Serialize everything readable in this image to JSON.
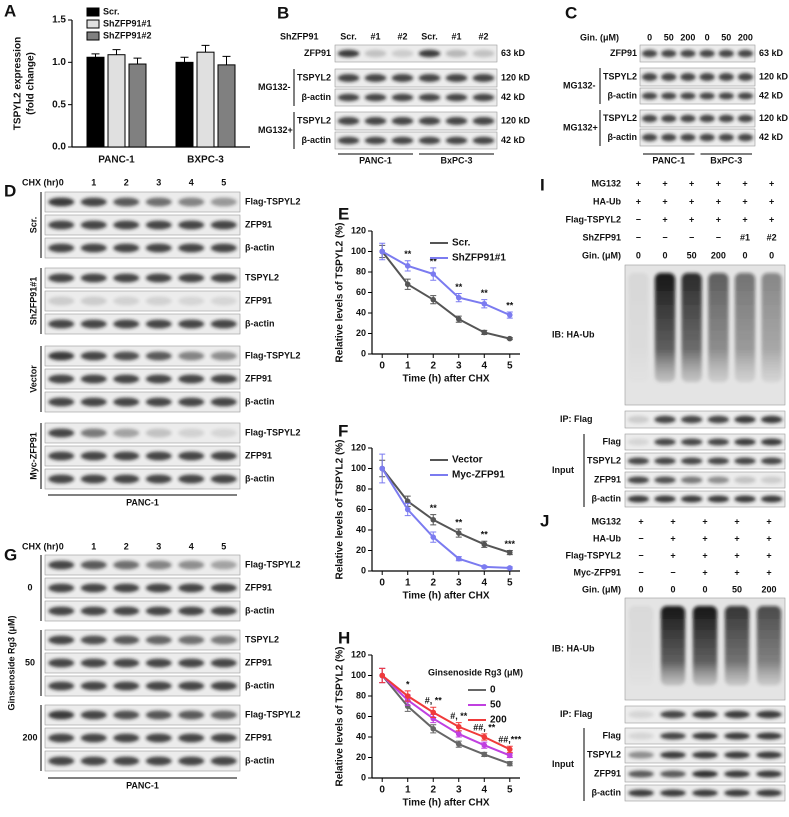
{
  "chart_data": [
    {
      "type": "bar",
      "panel": "A",
      "y_label": [
        "TSPYL2 expression",
        "(fold change)"
      ],
      "categories": [
        "PANC-1",
        "BXPC-3"
      ],
      "series": [
        {
          "name": "Scr.",
          "color": "#000000",
          "values": [
            1.06,
            1.0
          ],
          "errors": [
            0.04,
            0.06
          ]
        },
        {
          "name": "ShZFP91#1",
          "color": "#e0e0e0",
          "values": [
            1.09,
            1.12
          ],
          "errors": [
            0.06,
            0.08
          ]
        },
        {
          "name": "ShZFP91#2",
          "color": "#808080",
          "values": [
            0.98,
            0.97
          ],
          "errors": [
            0.07,
            0.1
          ]
        }
      ],
      "ylim": [
        0,
        1.5
      ],
      "yticks": [
        {
          "value": 0,
          "label": "0.0"
        },
        0.5,
        {
          "value": 1,
          "label": "1.0"
        },
        1.5
      ],
      "legend": "upper left"
    },
    {
      "type": "line",
      "panel": "E",
      "x_label": "Time (h) after CHX",
      "y_label": "Relative levels of TSPYL2 (%)",
      "x": [
        0,
        1,
        2,
        3,
        4,
        5
      ],
      "series": [
        {
          "name": "Scr.",
          "color": "#555555",
          "values": [
            100,
            68,
            53,
            34,
            21,
            15
          ],
          "errors": [
            6,
            5,
            4,
            3,
            2,
            1
          ]
        },
        {
          "name": "ShZFP91#1",
          "color": "#7b7bf0",
          "values": [
            100,
            86,
            78,
            55,
            49,
            38
          ],
          "errors": [
            8,
            5,
            6,
            4,
            4,
            3
          ]
        }
      ],
      "annotations": [
        null,
        "**",
        "**",
        "**",
        "**",
        "**"
      ],
      "xlim": [
        -0.4,
        5.4
      ],
      "xticks": [
        0,
        1,
        2,
        3,
        4,
        5
      ],
      "ylim": [
        0,
        120
      ],
      "yticks": [
        0,
        20,
        40,
        60,
        80,
        100,
        120
      ],
      "legend": "upper right"
    },
    {
      "type": "line",
      "panel": "F",
      "x_label": "Time (h) after CHX",
      "y_label": "Relative levels of TSPYL2 (%)",
      "x": [
        0,
        1,
        2,
        3,
        4,
        5
      ],
      "series": [
        {
          "name": "Vector",
          "color": "#555555",
          "values": [
            100,
            68,
            50,
            37,
            26,
            18
          ],
          "errors": [
            8,
            5,
            5,
            4,
            3,
            2
          ]
        },
        {
          "name": "Myc-ZFP91",
          "color": "#7b7bf0",
          "values": [
            100,
            60,
            33,
            12,
            4,
            3
          ],
          "errors": [
            14,
            6,
            5,
            2,
            1,
            1
          ]
        }
      ],
      "annotations": [
        null,
        null,
        "**",
        "**",
        "**",
        "***"
      ],
      "xlim": [
        -0.4,
        5.4
      ],
      "xticks": [
        0,
        1,
        2,
        3,
        4,
        5
      ],
      "ylim": [
        0,
        120
      ],
      "yticks": [
        0,
        20,
        40,
        60,
        80,
        100,
        120
      ],
      "legend": "upper right"
    },
    {
      "type": "line",
      "panel": "H",
      "x_label": "Time (h) after CHX",
      "y_label": "Relative levels of TSPYL2 (%)",
      "legend_title": "Ginsenoside Rg3 (μM)",
      "x": [
        0,
        1,
        2,
        3,
        4,
        5
      ],
      "series": [
        {
          "name": "0",
          "color": "#666666",
          "values": [
            100,
            70,
            48,
            33,
            23,
            14
          ],
          "errors": [
            7,
            5,
            4,
            3,
            2,
            2
          ]
        },
        {
          "name": "50",
          "color": "#c040e0",
          "values": [
            100,
            76,
            58,
            43,
            32,
            22
          ],
          "errors": [
            7,
            5,
            4,
            3,
            3,
            2
          ]
        },
        {
          "name": "200",
          "color": "#f03a3a",
          "values": [
            100,
            80,
            64,
            50,
            40,
            28
          ],
          "errors": [
            7,
            5,
            5,
            4,
            3,
            3
          ]
        }
      ],
      "annotations": [
        null,
        "*",
        "#, **",
        "#, **",
        "##, **",
        "##,***"
      ],
      "xlim": [
        -0.4,
        5.4
      ],
      "xticks": [
        0,
        1,
        2,
        3,
        4,
        5
      ],
      "ylim": [
        0,
        120
      ],
      "yticks": [
        0,
        20,
        40,
        60,
        80,
        100,
        120
      ],
      "legend": "upper right"
    }
  ],
  "blots": [
    {
      "panel": "B",
      "lane_header": "ShZFP91",
      "lanes": [
        "Scr.",
        "#1",
        "#2",
        "Scr.",
        "#1",
        "#2"
      ],
      "groups": [
        {
          "rows": [
            {
              "label": "ZFP91",
              "size": "63 kD"
            }
          ]
        },
        {
          "name": "MG132-",
          "rows": [
            {
              "label": "TSPYL2",
              "size": "120 kD"
            },
            {
              "label": "β-actin",
              "size": "42 kD"
            }
          ]
        },
        {
          "name": "MG132+",
          "rows": [
            {
              "label": "TSPYL2",
              "size": "120 kD"
            },
            {
              "label": "β-actin",
              "size": "42 kD"
            }
          ]
        }
      ],
      "cell_lines": [
        "PANC-1",
        "BxPC-3"
      ]
    },
    {
      "panel": "C",
      "lane_header": "Gin. (μM)",
      "lanes": [
        "0",
        "50",
        "200",
        "0",
        "50",
        "200"
      ],
      "groups": [
        {
          "rows": [
            {
              "label": "ZFP91",
              "size": "63 kD"
            }
          ]
        },
        {
          "name": "MG132-",
          "rows": [
            {
              "label": "TSPYL2",
              "size": "120 kD"
            },
            {
              "label": "β-actin",
              "size": "42 kD"
            }
          ]
        },
        {
          "name": "MG132+",
          "rows": [
            {
              "label": "TSPYL2",
              "size": "120 kD"
            },
            {
              "label": "β-actin",
              "size": "42 kD"
            }
          ]
        }
      ],
      "cell_lines": [
        "PANC-1",
        "BxPC-3"
      ]
    },
    {
      "panel": "D",
      "lane_header": "CHX (hr)",
      "lanes": [
        "0",
        "1",
        "2",
        "3",
        "4",
        "5"
      ],
      "groups": [
        {
          "name": "Scr.",
          "rows": [
            {
              "label": "Flag-TSPYL2"
            },
            {
              "label": "ZFP91"
            },
            {
              "label": "β-actin"
            }
          ]
        },
        {
          "name": "ShZFP91#1",
          "rows": [
            {
              "label": "TSPYL2"
            },
            {
              "label": "ZFP91"
            },
            {
              "label": "β-actin"
            }
          ]
        },
        {
          "name": "Vector",
          "rows": [
            {
              "label": "Flag-TSPYL2"
            },
            {
              "label": "ZFP91"
            },
            {
              "label": "β-actin"
            }
          ]
        },
        {
          "name": "Myc-ZFP91",
          "rows": [
            {
              "label": "Flag-TSPYL2"
            },
            {
              "label": "ZFP91"
            },
            {
              "label": "β-actin"
            }
          ]
        }
      ],
      "cell_lines": [
        "PANC-1"
      ]
    },
    {
      "panel": "G",
      "lane_header": "CHX (hr)",
      "lanes": [
        "0",
        "1",
        "2",
        "3",
        "4",
        "5"
      ],
      "side_label": "Ginsenoside Rg3 (μM)",
      "groups": [
        {
          "name": "0",
          "rows": [
            {
              "label": "Flag-TSPYL2"
            },
            {
              "label": "ZFP91"
            },
            {
              "label": "β-actin"
            }
          ]
        },
        {
          "name": "50",
          "rows": [
            {
              "label": "TSPYL2"
            },
            {
              "label": "ZFP91"
            },
            {
              "label": "β-actin"
            }
          ]
        },
        {
          "name": "200",
          "rows": [
            {
              "label": "Flag-TSPYL2"
            },
            {
              "label": "ZFP91"
            },
            {
              "label": "β-actin"
            }
          ]
        }
      ],
      "cell_lines": [
        "PANC-1"
      ]
    },
    {
      "panel": "I",
      "conditions": [
        {
          "label": "MG132",
          "values": [
            "+",
            "+",
            "+",
            "+",
            "+",
            "+"
          ]
        },
        {
          "label": "HA-Ub",
          "values": [
            "+",
            "+",
            "+",
            "+",
            "+",
            "+"
          ]
        },
        {
          "label": "Flag-TSPYL2",
          "values": [
            "−",
            "+",
            "+",
            "+",
            "+",
            "+"
          ]
        },
        {
          "label": "ShZFP91",
          "values": [
            "−",
            "−",
            "−",
            "−",
            "#1",
            "#2"
          ]
        },
        {
          "label": "Gin. (μM)",
          "values": [
            "0",
            "0",
            "50",
            "200",
            "0",
            "0"
          ]
        }
      ],
      "ib": "IB: HA-Ub",
      "ip": "IP: Flag",
      "input": {
        "label": "Input",
        "rows": [
          "Flag",
          "TSPYL2",
          "ZFP91",
          "β-actin"
        ]
      }
    },
    {
      "panel": "J",
      "conditions": [
        {
          "label": "MG132",
          "values": [
            "+",
            "+",
            "+",
            "+",
            "+"
          ]
        },
        {
          "label": "HA-Ub",
          "values": [
            "−",
            "+",
            "+",
            "+",
            "+"
          ]
        },
        {
          "label": "Flag-TSPYL2",
          "values": [
            "−",
            "+",
            "+",
            "+",
            "+"
          ]
        },
        {
          "label": "Myc-ZFP91",
          "values": [
            "−",
            "−",
            "+",
            "+",
            "+"
          ]
        },
        {
          "label": "Gin. (μM)",
          "values": [
            "0",
            "0",
            "0",
            "50",
            "200"
          ]
        }
      ],
      "ib": "IB: HA-Ub",
      "ip": "IP: Flag",
      "input": {
        "label": "Input",
        "rows": [
          "Flag",
          "TSPYL2",
          "ZFP91",
          "β-actin"
        ]
      }
    }
  ]
}
